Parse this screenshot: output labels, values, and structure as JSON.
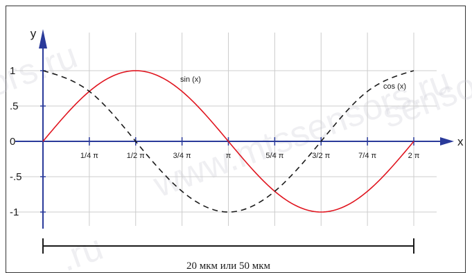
{
  "chart_data": {
    "type": "line",
    "title": "",
    "xlabel": "x",
    "ylabel": "y",
    "xlim": [
      0,
      6.2832
    ],
    "ylim": [
      -1.2,
      1.2
    ],
    "grid": true,
    "x_ticks": [
      {
        "value": 0.7854,
        "label": "1/4 π"
      },
      {
        "value": 1.5708,
        "label": "1/2 π"
      },
      {
        "value": 2.3562,
        "label": "3/4 π"
      },
      {
        "value": 3.1416,
        "label": "π"
      },
      {
        "value": 3.927,
        "label": "5/4 π"
      },
      {
        "value": 4.7124,
        "label": "3/2 π"
      },
      {
        "value": 5.4978,
        "label": "7/4 π"
      },
      {
        "value": 6.2832,
        "label": "2 π"
      }
    ],
    "y_ticks": [
      {
        "value": 1,
        "label": "1"
      },
      {
        "value": 0.5,
        "label": ".5"
      },
      {
        "value": 0,
        "label": "0"
      },
      {
        "value": -0.5,
        "label": "-.5"
      },
      {
        "value": -1,
        "label": "-1"
      }
    ],
    "series": [
      {
        "name": "sin (x)",
        "color": "#e0141e",
        "style": "solid",
        "x": [
          0,
          0.7854,
          1.5708,
          2.3562,
          3.1416,
          3.927,
          4.7124,
          5.4978,
          6.2832
        ],
        "y": [
          0,
          0.7071,
          1,
          0.7071,
          0,
          -0.7071,
          -1,
          -0.7071,
          0
        ]
      },
      {
        "name": "cos (x)",
        "color": "#1a1a1a",
        "style": "dashed",
        "x": [
          0,
          0.7854,
          1.5708,
          2.3562,
          3.1416,
          3.927,
          4.7124,
          5.4978,
          6.2832
        ],
        "y": [
          1,
          0.7071,
          0,
          -0.7071,
          -1,
          -0.7071,
          0,
          0.7071,
          1
        ]
      }
    ],
    "scale_bar": {
      "label": "20 мкм или 50 мкм"
    },
    "watermarks": [
      "www.mtssensors.ru",
      "ors.ru",
      "sensors",
      ".ru"
    ],
    "colors": {
      "axis": "#2a3a9a",
      "grid": "#cccccc",
      "frame": "#333333"
    }
  }
}
